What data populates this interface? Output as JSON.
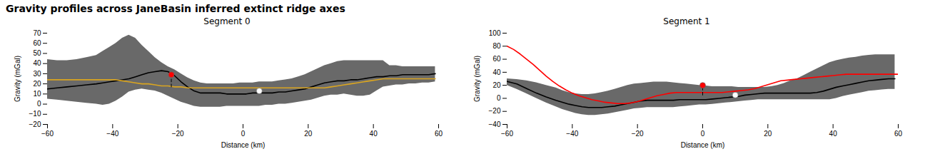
{
  "title": "Gravity profiles across JaneBasin inferred extinct ridge axes",
  "chart_data": [
    {
      "type": "line",
      "title": "Segment 0",
      "xlabel": "Distance (km)",
      "ylabel": "Gravity (mGal)",
      "xlim": [
        -60,
        60
      ],
      "xticks": [
        -60,
        -40,
        -20,
        0,
        20,
        40,
        60
      ],
      "ylim": [
        -20,
        70
      ],
      "yticks": [
        -20,
        -10,
        0,
        10,
        20,
        30,
        40,
        50,
        60,
        70
      ],
      "grid": false,
      "series": [
        {
          "type": "area",
          "color": "#696969",
          "x": [
            -60,
            -57,
            -54,
            -51,
            -48,
            -45,
            -43,
            -41,
            -39,
            -37,
            -35,
            -33,
            -31,
            -29,
            -27,
            -25,
            -23,
            -21,
            -19,
            -17,
            -15,
            -13,
            -11,
            -9,
            -7,
            -5,
            -3,
            -1,
            1,
            3,
            5,
            7,
            9,
            11,
            13,
            15,
            17,
            19,
            21,
            23,
            25,
            27,
            29,
            31,
            33,
            35,
            37,
            39,
            41,
            43,
            45,
            47,
            49,
            51,
            53,
            55,
            57,
            59
          ],
          "lower": [
            5,
            4,
            3,
            2,
            1,
            0,
            -1,
            0,
            3,
            7,
            12,
            14,
            15,
            14,
            13,
            11,
            8,
            5,
            2,
            0,
            -2,
            -3,
            -3,
            -3,
            -3,
            -2,
            -2,
            -2,
            -2,
            -2,
            -2,
            -1,
            -1,
            0,
            0,
            1,
            2,
            3,
            4,
            6,
            8,
            9,
            9,
            10,
            9,
            8,
            8,
            9,
            13,
            17,
            18,
            19,
            19,
            20,
            20,
            21,
            21,
            22
          ],
          "upper": [
            44,
            43,
            43,
            44,
            46,
            48,
            52,
            56,
            60,
            65,
            68,
            65,
            58,
            52,
            46,
            41,
            37,
            34,
            30,
            26,
            23,
            21,
            20,
            20,
            20,
            20,
            20,
            21,
            21,
            21,
            22,
            22,
            22,
            23,
            24,
            25,
            27,
            29,
            32,
            35,
            38,
            40,
            42,
            43,
            43,
            43,
            43,
            43,
            43,
            43,
            38,
            38,
            37,
            37,
            37,
            37,
            37,
            37
          ]
        },
        {
          "type": "line",
          "color": "#000000",
          "line_style": "solid",
          "x": [
            -60,
            -57,
            -54,
            -51,
            -48,
            -45,
            -43,
            -41,
            -39,
            -37,
            -35,
            -33,
            -31,
            -29,
            -27,
            -25,
            -23,
            -21,
            -19,
            -17,
            -15,
            -13,
            -11,
            -9,
            -7,
            -5,
            -3,
            -1,
            1,
            3,
            5,
            7,
            9,
            11,
            13,
            15,
            17,
            19,
            21,
            23,
            25,
            27,
            29,
            31,
            33,
            35,
            37,
            39,
            41,
            43,
            45,
            47,
            49,
            51,
            53,
            55,
            57,
            59
          ],
          "values": [
            15,
            16,
            17,
            18,
            19,
            20,
            21,
            22,
            23,
            24,
            25,
            27,
            29,
            31,
            32,
            33,
            32,
            28,
            22,
            17,
            13,
            11,
            11,
            11,
            11,
            10,
            10,
            10,
            10,
            11,
            11,
            11,
            11,
            12,
            12,
            13,
            14,
            15,
            17,
            19,
            21,
            22,
            23,
            23,
            24,
            24,
            25,
            26,
            27,
            27,
            28,
            28,
            29,
            29,
            29,
            29,
            29,
            30
          ]
        },
        {
          "type": "line",
          "color": "#DAA520",
          "line_style": "solid",
          "x": [
            -60,
            -57,
            -54,
            -51,
            -48,
            -45,
            -43,
            -41,
            -39,
            -37,
            -35,
            -33,
            -31,
            -29,
            -27,
            -25,
            -23,
            -21,
            -19,
            -17,
            -15,
            -13,
            -11,
            -9,
            -7,
            -5,
            -3,
            -1,
            1,
            3,
            5,
            7,
            9,
            11,
            13,
            15,
            17,
            19,
            21,
            23,
            25,
            27,
            29,
            31,
            33,
            35,
            37,
            39,
            41,
            43,
            45,
            47,
            49,
            51,
            53,
            55,
            57,
            59
          ],
          "values": [
            24,
            24,
            24,
            24,
            24,
            24,
            24,
            24,
            24,
            23,
            22,
            21,
            20,
            20,
            19,
            18,
            18,
            17,
            17,
            16,
            16,
            16,
            16,
            16,
            16,
            16,
            16,
            16,
            16,
            16,
            16,
            16,
            16,
            16,
            16,
            16,
            16,
            16,
            16,
            16,
            16,
            17,
            18,
            19,
            20,
            21,
            22,
            23,
            24,
            25,
            25,
            25,
            25,
            25,
            25,
            25,
            25,
            25
          ]
        },
        {
          "type": "scatter",
          "color": "red",
          "marker": "circle",
          "x": [
            -22
          ],
          "values": [
            29
          ]
        },
        {
          "type": "line",
          "color": "black",
          "line_style": "dashed",
          "x": [
            -22,
            -22
          ],
          "values": [
            17,
            29
          ]
        },
        {
          "type": "scatter",
          "color": "white",
          "marker": "circle",
          "x": [
            5
          ],
          "values": [
            13
          ]
        }
      ]
    },
    {
      "type": "line",
      "title": "Segment 1",
      "xlabel": "Distance (km)",
      "ylabel": "Gravity (mGal)",
      "xlim": [
        -60,
        60
      ],
      "xticks": [
        -60,
        -40,
        -20,
        0,
        20,
        40,
        60
      ],
      "ylim": [
        -40,
        100
      ],
      "yticks": [
        -40,
        -20,
        0,
        20,
        40,
        60,
        80,
        100
      ],
      "grid": false,
      "series": [
        {
          "type": "area",
          "color": "#696969",
          "x": [
            -60,
            -57,
            -54,
            -51,
            -48,
            -45,
            -43,
            -41,
            -39,
            -37,
            -35,
            -33,
            -31,
            -29,
            -27,
            -25,
            -23,
            -21,
            -19,
            -17,
            -15,
            -13,
            -11,
            -9,
            -7,
            -5,
            -3,
            -1,
            1,
            3,
            5,
            7,
            9,
            11,
            13,
            15,
            17,
            19,
            21,
            23,
            25,
            27,
            29,
            31,
            33,
            35,
            37,
            39,
            41,
            43,
            45,
            47,
            49,
            51,
            53,
            55,
            57,
            59
          ],
          "lower": [
            20,
            14,
            7,
            0,
            -7,
            -13,
            -17,
            -20,
            -23,
            -25,
            -26,
            -26,
            -25,
            -24,
            -22,
            -20,
            -18,
            -16,
            -15,
            -14,
            -14,
            -14,
            -14,
            -14,
            -13,
            -12,
            -11,
            -10,
            -10,
            -9,
            -8,
            -7,
            -6,
            -5,
            -4,
            -3,
            -2,
            -2,
            -2,
            -2,
            -2,
            -2,
            -2,
            -2,
            -2,
            -2,
            -2,
            -2,
            0,
            3,
            5,
            7,
            9,
            11,
            12,
            13,
            14,
            14
          ],
          "upper": [
            30,
            29,
            27,
            24,
            20,
            16,
            12,
            9,
            7,
            6,
            6,
            7,
            9,
            11,
            14,
            17,
            20,
            22,
            23,
            24,
            25,
            25,
            25,
            24,
            23,
            22,
            21,
            20,
            19,
            18,
            18,
            18,
            18,
            17,
            17,
            17,
            17,
            17,
            18,
            20,
            23,
            27,
            30,
            35,
            40,
            45,
            50,
            55,
            58,
            60,
            62,
            63,
            65,
            66,
            67,
            67,
            67,
            67
          ]
        },
        {
          "type": "line",
          "color": "#000000",
          "line_style": "solid",
          "x": [
            -60,
            -57,
            -54,
            -51,
            -48,
            -45,
            -43,
            -41,
            -39,
            -37,
            -35,
            -33,
            -31,
            -29,
            -27,
            -25,
            -23,
            -21,
            -19,
            -17,
            -15,
            -13,
            -11,
            -9,
            -7,
            -5,
            -3,
            -1,
            1,
            3,
            5,
            7,
            9,
            11,
            13,
            15,
            17,
            19,
            21,
            23,
            25,
            27,
            29,
            31,
            33,
            35,
            37,
            39,
            41,
            43,
            45,
            47,
            49,
            51,
            53,
            55,
            57,
            59
          ],
          "values": [
            26,
            22,
            15,
            8,
            2,
            -3,
            -6,
            -9,
            -11,
            -13,
            -14,
            -14,
            -14,
            -13,
            -12,
            -10,
            -8,
            -6,
            -4,
            -3,
            -3,
            -3,
            -3,
            -3,
            -2,
            -2,
            -2,
            -2,
            -2,
            -1,
            0,
            1,
            2,
            3,
            5,
            6,
            7,
            8,
            8,
            8,
            8,
            8,
            8,
            8,
            8,
            9,
            11,
            14,
            17,
            19,
            21,
            23,
            25,
            27,
            28,
            29,
            30,
            30
          ]
        },
        {
          "type": "line",
          "color": "#FF0000",
          "line_style": "solid",
          "x": [
            -60,
            -58,
            -56,
            -54,
            -52,
            -50,
            -48,
            -46,
            -44,
            -42,
            -40,
            -38,
            -36,
            -34,
            -32,
            -30,
            -28,
            -26,
            -24,
            -22,
            -20,
            -18,
            -16,
            -14,
            -12,
            -10,
            -8,
            -6,
            -4,
            -2,
            0,
            2,
            4,
            6,
            8,
            10,
            12,
            14,
            16,
            18,
            20,
            22,
            24,
            26,
            28,
            30,
            32,
            34,
            36,
            38,
            40,
            42,
            44,
            46,
            48,
            50,
            52,
            54,
            56,
            58,
            60
          ],
          "values": [
            80,
            75,
            68,
            60,
            52,
            43,
            34,
            26,
            19,
            13,
            8,
            4,
            1,
            -2,
            -4,
            -6,
            -7,
            -8,
            -8,
            -7,
            -5,
            -2,
            1,
            4,
            6,
            8,
            9,
            9,
            9,
            9,
            9,
            9,
            9,
            9,
            10,
            11,
            12,
            13,
            15,
            18,
            21,
            24,
            27,
            28,
            29,
            30,
            31,
            32,
            33,
            34,
            35,
            36,
            37,
            37,
            37,
            37,
            37,
            37,
            37,
            37,
            37
          ]
        },
        {
          "type": "scatter",
          "color": "red",
          "marker": "circle",
          "x": [
            0
          ],
          "values": [
            20
          ]
        },
        {
          "type": "line",
          "color": "black",
          "line_style": "dashed",
          "x": [
            0,
            0
          ],
          "values": [
            5,
            20
          ]
        },
        {
          "type": "scatter",
          "color": "white",
          "marker": "circle",
          "x": [
            10
          ],
          "values": [
            5
          ]
        }
      ]
    }
  ]
}
